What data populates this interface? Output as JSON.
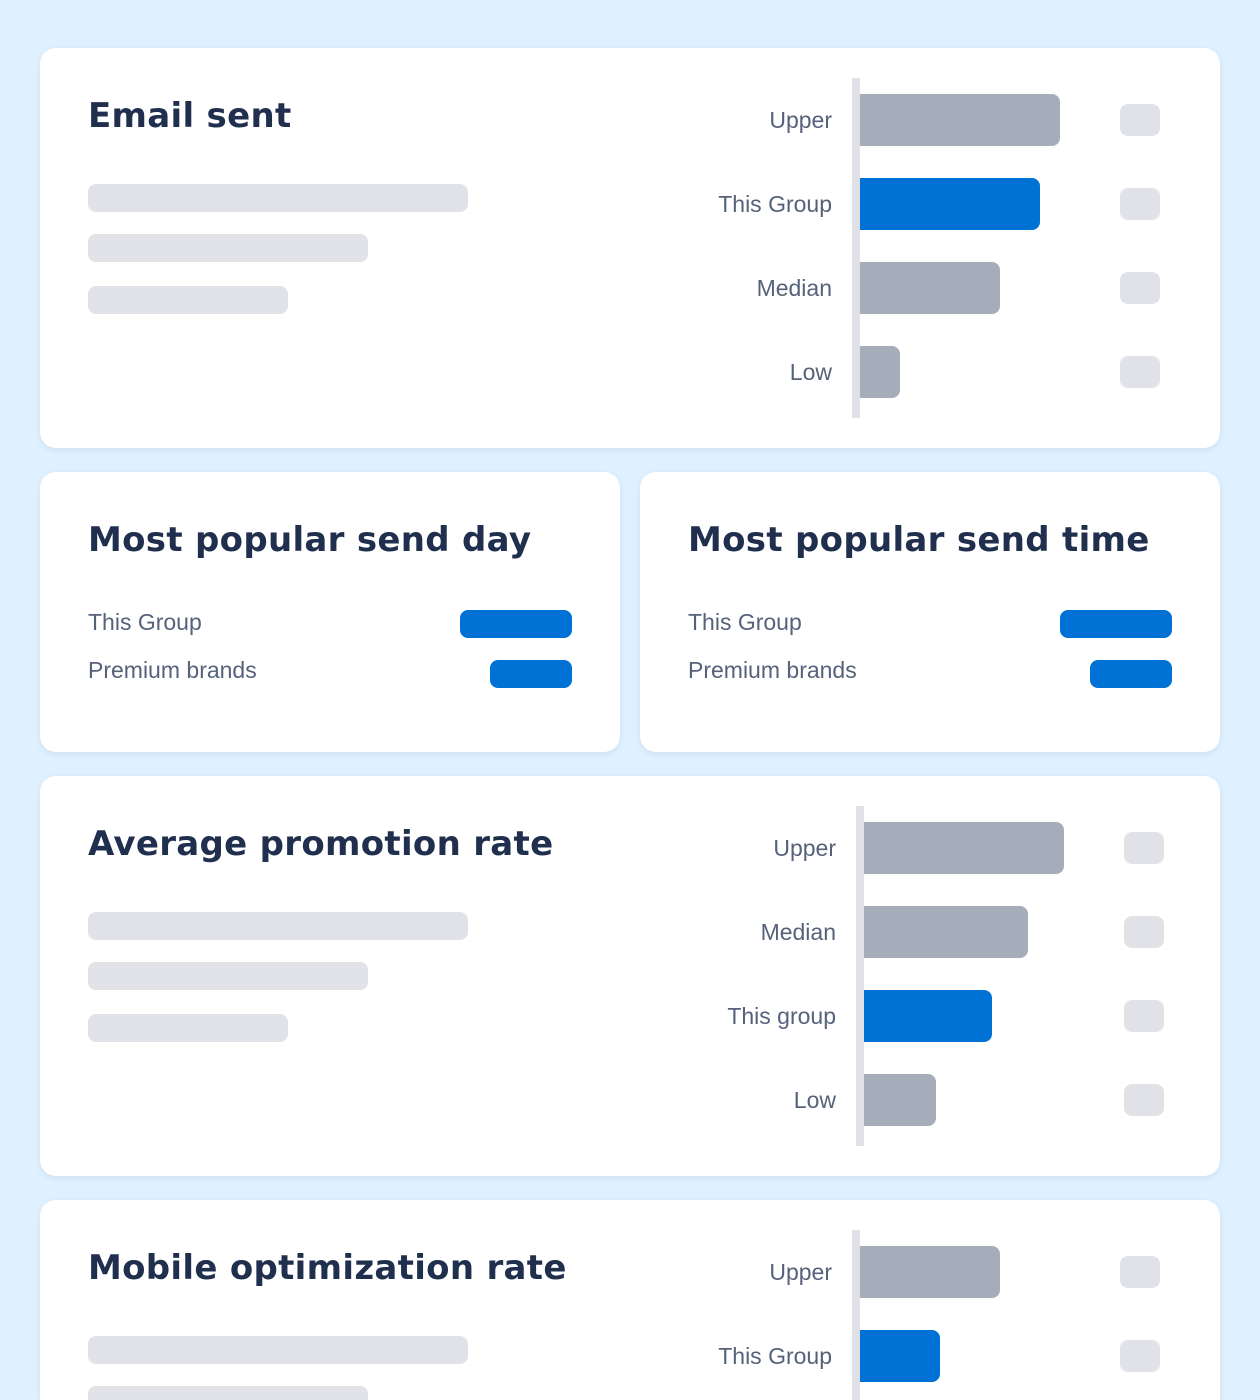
{
  "cards": {
    "email_sent": {
      "title": "Email sent",
      "rows": [
        {
          "label": "Upper",
          "value": 100,
          "highlight": false
        },
        {
          "label": "This Group",
          "value": 90,
          "highlight": true
        },
        {
          "label": "Median",
          "value": 70,
          "highlight": false
        },
        {
          "label": "Low",
          "value": 20,
          "highlight": false
        }
      ]
    },
    "send_day": {
      "title": "Most popular send day",
      "rows": [
        {
          "label": "This Group"
        },
        {
          "label": "Premium brands"
        }
      ]
    },
    "send_time": {
      "title": "Most popular send time",
      "rows": [
        {
          "label": "This Group"
        },
        {
          "label": "Premium brands"
        }
      ]
    },
    "promotion_rate": {
      "title": "Average promotion rate",
      "rows": [
        {
          "label": "Upper",
          "value": 100,
          "highlight": false
        },
        {
          "label": "Median",
          "value": 82,
          "highlight": false
        },
        {
          "label": "This group",
          "value": 64,
          "highlight": true
        },
        {
          "label": "Low",
          "value": 36,
          "highlight": false
        }
      ]
    },
    "mobile_rate": {
      "title": "Mobile optimization rate",
      "rows": [
        {
          "label": "Upper",
          "value": 70,
          "highlight": false
        },
        {
          "label": "This Group",
          "value": 40,
          "highlight": true
        }
      ]
    }
  },
  "colors": {
    "background": "#dff0fe",
    "accent": "#0072d6",
    "bar_gray": "#a6adba",
    "placeholder": "#e1e2e7",
    "title": "#1f2f4d",
    "label": "#55627a"
  }
}
